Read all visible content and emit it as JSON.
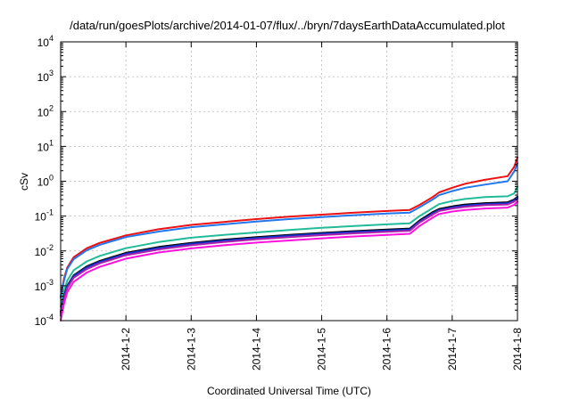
{
  "chart_data": {
    "type": "line",
    "title": "/data/run/goesPlots/archive/2014-01-07/flux/../bryn/7daysEarthDataAccumulated.plot",
    "xlabel": "Coordinated Universal Time (UTC)",
    "ylabel": "cSv",
    "yscale": "log",
    "ylim": [
      0.0001,
      10000
    ],
    "xlim": [
      1.0,
      8.0
    ],
    "grid": true,
    "x_ticks": [
      {
        "value": 2,
        "label": "2014-1-2"
      },
      {
        "value": 3,
        "label": "2014-1-3"
      },
      {
        "value": 4,
        "label": "2014-1-4"
      },
      {
        "value": 5,
        "label": "2014-1-5"
      },
      {
        "value": 6,
        "label": "2014-1-6"
      },
      {
        "value": 7,
        "label": "2014-1-7"
      },
      {
        "value": 8,
        "label": "2014-1-8"
      }
    ],
    "y_ticks": [
      {
        "value": 0.0001,
        "base": "10",
        "exp": "-4"
      },
      {
        "value": 0.001,
        "base": "10",
        "exp": "-3"
      },
      {
        "value": 0.01,
        "base": "10",
        "exp": "-2"
      },
      {
        "value": 0.1,
        "base": "10",
        "exp": "-1"
      },
      {
        "value": 1,
        "base": "10",
        "exp": "0"
      },
      {
        "value": 10,
        "base": "10",
        "exp": "1"
      },
      {
        "value": 100,
        "base": "10",
        "exp": "2"
      },
      {
        "value": 1000,
        "base": "10",
        "exp": "3"
      },
      {
        "value": 10000,
        "base": "10",
        "exp": "4"
      }
    ],
    "x": [
      1.0,
      1.05,
      1.1,
      1.2,
      1.4,
      1.6,
      2.0,
      2.5,
      3.0,
      3.5,
      4.0,
      4.5,
      5.0,
      5.5,
      6.0,
      6.35,
      6.5,
      6.7,
      6.8,
      7.0,
      7.2,
      7.5,
      7.85,
      7.95,
      8.0
    ],
    "series": [
      {
        "color": "#ee1111",
        "values": [
          0.0005,
          0.0016,
          0.0033,
          0.0066,
          0.012,
          0.017,
          0.028,
          0.042,
          0.056,
          0.068,
          0.082,
          0.096,
          0.11,
          0.125,
          0.14,
          0.15,
          0.21,
          0.35,
          0.48,
          0.65,
          0.85,
          1.1,
          1.4,
          2.6,
          4.8
        ]
      },
      {
        "color": "#2277ee",
        "values": [
          0.00045,
          0.0014,
          0.003,
          0.0058,
          0.0105,
          0.015,
          0.025,
          0.036,
          0.048,
          0.058,
          0.07,
          0.082,
          0.094,
          0.106,
          0.118,
          0.125,
          0.18,
          0.3,
          0.4,
          0.52,
          0.65,
          0.8,
          1.0,
          1.9,
          3.3
        ]
      },
      {
        "color": "#22bb99",
        "values": [
          0.00025,
          0.0007,
          0.0014,
          0.0028,
          0.005,
          0.0072,
          0.012,
          0.018,
          0.024,
          0.029,
          0.034,
          0.04,
          0.046,
          0.052,
          0.058,
          0.062,
          0.1,
          0.17,
          0.22,
          0.27,
          0.31,
          0.35,
          0.37,
          0.45,
          0.7
        ]
      },
      {
        "color": "#000000",
        "values": [
          0.00018,
          0.0005,
          0.001,
          0.002,
          0.0036,
          0.0052,
          0.0088,
          0.013,
          0.017,
          0.021,
          0.025,
          0.029,
          0.033,
          0.037,
          0.041,
          0.044,
          0.075,
          0.13,
          0.16,
          0.19,
          0.215,
          0.235,
          0.25,
          0.3,
          0.36
        ]
      },
      {
        "color": "#1133cc",
        "values": [
          0.00016,
          0.00046,
          0.00095,
          0.0019,
          0.0034,
          0.0049,
          0.0083,
          0.0122,
          0.016,
          0.0198,
          0.0236,
          0.0274,
          0.0312,
          0.035,
          0.0388,
          0.0415,
          0.07,
          0.12,
          0.15,
          0.178,
          0.2,
          0.22,
          0.235,
          0.28,
          0.34
        ]
      },
      {
        "color": "#aa22aa",
        "values": [
          0.00014,
          0.0004,
          0.00085,
          0.0017,
          0.003,
          0.0044,
          0.0075,
          0.011,
          0.0145,
          0.018,
          0.0215,
          0.025,
          0.0285,
          0.032,
          0.0355,
          0.038,
          0.065,
          0.11,
          0.14,
          0.165,
          0.185,
          0.205,
          0.215,
          0.26,
          0.31
        ]
      },
      {
        "color": "#ff11dd",
        "values": [
          0.0001,
          0.0003,
          0.00065,
          0.0013,
          0.0024,
          0.0035,
          0.006,
          0.009,
          0.0118,
          0.0145,
          0.0173,
          0.02,
          0.023,
          0.026,
          0.0288,
          0.031,
          0.052,
          0.09,
          0.115,
          0.135,
          0.15,
          0.165,
          0.175,
          0.21,
          0.26
        ]
      }
    ]
  }
}
